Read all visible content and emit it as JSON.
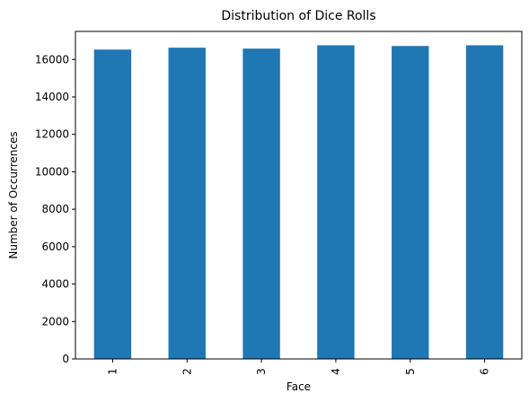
{
  "chart_data": {
    "type": "bar",
    "title": "Distribution of Dice Rolls",
    "xlabel": "Face",
    "ylabel": "Number of Occurrences",
    "categories": [
      "1",
      "2",
      "3",
      "4",
      "5",
      "6"
    ],
    "values": [
      16530,
      16630,
      16580,
      16760,
      16720,
      16760
    ],
    "ylim": [
      0,
      17500
    ],
    "yticks": [
      0,
      2000,
      4000,
      6000,
      8000,
      10000,
      12000,
      14000,
      16000
    ],
    "bar_color": "#1f77b4",
    "grid": false,
    "legend": "none"
  }
}
